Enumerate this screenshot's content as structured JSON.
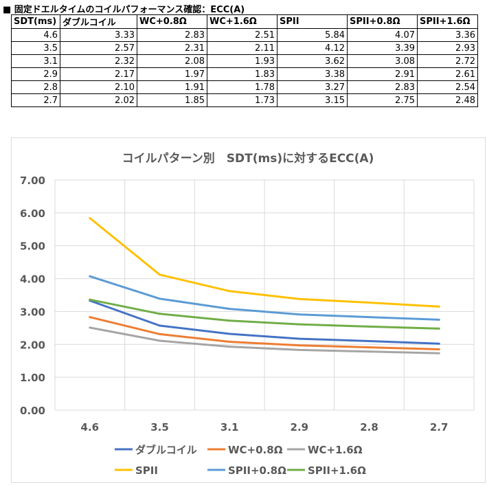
{
  "heading": "■ 固定ドエルタイムのコイルパフォーマンス確認：ECC(A)",
  "table": {
    "headers": [
      "SDT(ms)",
      "ダブルコイル",
      "WC+0.8Ω",
      "WC+1.6Ω",
      "SPII",
      "SPII+0.8Ω",
      "SPII+1.6Ω"
    ],
    "rows": [
      [
        "4.6",
        "3.33",
        "2.83",
        "2.51",
        "5.84",
        "4.07",
        "3.36"
      ],
      [
        "3.5",
        "2.57",
        "2.31",
        "2.11",
        "4.12",
        "3.39",
        "2.93"
      ],
      [
        "3.1",
        "2.32",
        "2.08",
        "1.93",
        "3.62",
        "3.08",
        "2.72"
      ],
      [
        "2.9",
        "2.17",
        "1.97",
        "1.83",
        "3.38",
        "2.91",
        "2.61"
      ],
      [
        "2.8",
        "2.10",
        "1.91",
        "1.78",
        "3.27",
        "2.83",
        "2.54"
      ],
      [
        "2.7",
        "2.02",
        "1.85",
        "1.73",
        "3.15",
        "2.75",
        "2.48"
      ]
    ]
  },
  "chart_data": {
    "type": "line",
    "title": "コイルパターン別　SDT(ms)に対するECC(A)",
    "categories": [
      "4.6",
      "3.5",
      "3.1",
      "2.9",
      "2.8",
      "2.7"
    ],
    "ylim": [
      0,
      7
    ],
    "yticks": [
      "0.00",
      "1.00",
      "2.00",
      "3.00",
      "4.00",
      "5.00",
      "6.00",
      "7.00"
    ],
    "grid": true,
    "legend_position": "bottom",
    "series": [
      {
        "name": "ダブルコイル",
        "color": "#4472c4",
        "values": [
          3.33,
          2.57,
          2.32,
          2.17,
          2.1,
          2.02
        ]
      },
      {
        "name": "WC+0.8Ω",
        "color": "#ed7d31",
        "values": [
          2.83,
          2.31,
          2.08,
          1.97,
          1.91,
          1.85
        ]
      },
      {
        "name": "WC+1.6Ω",
        "color": "#a5a5a5",
        "values": [
          2.51,
          2.11,
          1.93,
          1.83,
          1.78,
          1.73
        ]
      },
      {
        "name": "SPII",
        "color": "#ffc000",
        "values": [
          5.84,
          4.12,
          3.62,
          3.38,
          3.27,
          3.15
        ]
      },
      {
        "name": "SPII+0.8Ω",
        "color": "#5b9bd5",
        "values": [
          4.07,
          3.39,
          3.08,
          2.91,
          2.83,
          2.75
        ]
      },
      {
        "name": "SPII+1.6Ω",
        "color": "#70ad47",
        "values": [
          3.36,
          2.93,
          2.72,
          2.61,
          2.54,
          2.48
        ]
      }
    ]
  }
}
